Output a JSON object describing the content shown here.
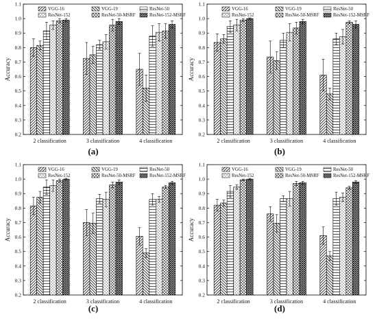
{
  "legend": [
    "VGG-16",
    "VGG-19",
    "ResNet-50",
    "ResNet-152",
    "ResNet-50-MSRF",
    "ResNet-152-MSRF"
  ],
  "chart_data": [
    {
      "type": "bar",
      "panel_label": "(a)",
      "categories": [
        "2 classification",
        "3 classification",
        "4 classification"
      ],
      "ylabel": "Accuracy",
      "ylim": [
        0.2,
        1.1
      ],
      "yticks": [
        "0.2",
        "0.3",
        "0.4",
        "0.5",
        "0.6",
        "0.7",
        "0.8",
        "0.9",
        "1.0",
        "1.1"
      ],
      "series": [
        {
          "name": "VGG-16",
          "values": [
            0.8,
            0.725,
            0.65
          ],
          "errors": [
            0.06,
            0.11,
            0.11
          ]
        },
        {
          "name": "VGG-19",
          "values": [
            0.815,
            0.75,
            0.52
          ],
          "errors": [
            0.03,
            0.06,
            0.09
          ]
        },
        {
          "name": "ResNet-50",
          "values": [
            0.915,
            0.82,
            0.88
          ],
          "errors": [
            0.06,
            0.03,
            0.07
          ]
        },
        {
          "name": "ResNet-152",
          "values": [
            0.955,
            0.84,
            0.905
          ],
          "errors": [
            0.03,
            0.05,
            0.06
          ]
        },
        {
          "name": "ResNet-50-MSRF",
          "values": [
            0.985,
            0.955,
            0.915
          ],
          "errors": [
            0.015,
            0.04,
            0.05
          ]
        },
        {
          "name": "ResNet-152-MSRF",
          "values": [
            0.99,
            0.98,
            0.96
          ],
          "errors": [
            0.01,
            0.02,
            0.025
          ]
        }
      ]
    },
    {
      "type": "bar",
      "panel_label": "(b)",
      "categories": [
        "2 classification",
        "3 classification",
        "4 classification"
      ],
      "ylabel": "Accuracy",
      "ylim": [
        0.2,
        1.1
      ],
      "yticks": [
        "0.2",
        "0.3",
        "0.4",
        "0.5",
        "0.6",
        "0.7",
        "0.8",
        "0.9",
        "1.0",
        "1.1"
      ],
      "series": [
        {
          "name": "VGG-16",
          "values": [
            0.835,
            0.735,
            0.61
          ],
          "errors": [
            0.06,
            0.11,
            0.11
          ]
        },
        {
          "name": "VGG-19",
          "values": [
            0.86,
            0.71,
            0.48
          ],
          "errors": [
            0.03,
            0.06,
            0.04
          ]
        },
        {
          "name": "ResNet-50",
          "values": [
            0.945,
            0.85,
            0.86
          ],
          "errors": [
            0.04,
            0.05,
            0.04
          ]
        },
        {
          "name": "ResNet-152",
          "values": [
            0.955,
            0.905,
            0.875
          ],
          "errors": [
            0.04,
            0.06,
            0.05
          ]
        },
        {
          "name": "ResNet-50-MSRF",
          "values": [
            0.99,
            0.935,
            0.975
          ],
          "errors": [
            0.01,
            0.04,
            0.01
          ]
        },
        {
          "name": "ResNet-152-MSRF",
          "values": [
            1.0,
            0.98,
            0.96
          ],
          "errors": [
            0.005,
            0.015,
            0.025
          ]
        }
      ]
    },
    {
      "type": "bar",
      "panel_label": "(c)",
      "categories": [
        "2 classification",
        "3 classification",
        "4 classification"
      ],
      "ylabel": "Accuracy",
      "ylim": [
        0.2,
        1.1
      ],
      "yticks": [
        "0.2",
        "0.3",
        "0.4",
        "0.5",
        "0.6",
        "0.7",
        "0.8",
        "0.9",
        "1.0",
        "1.1"
      ],
      "series": [
        {
          "name": "VGG-16",
          "values": [
            0.815,
            0.7,
            0.605
          ],
          "errors": [
            0.06,
            0.09,
            0.06
          ]
        },
        {
          "name": "VGG-19",
          "values": [
            0.875,
            0.695,
            0.49
          ],
          "errors": [
            0.04,
            0.07,
            0.03
          ]
        },
        {
          "name": "ResNet-50",
          "values": [
            0.945,
            0.865,
            0.86
          ],
          "errors": [
            0.05,
            0.03,
            0.04
          ]
        },
        {
          "name": "ResNet-152",
          "values": [
            0.955,
            0.86,
            0.86
          ],
          "errors": [
            0.04,
            0.05,
            0.02
          ]
        },
        {
          "name": "ResNet-50-MSRF",
          "values": [
            0.99,
            0.96,
            0.945
          ],
          "errors": [
            0.01,
            0.02,
            0.01
          ]
        },
        {
          "name": "ResNet-152-MSRF",
          "values": [
            1.0,
            0.98,
            0.975
          ],
          "errors": [
            0.005,
            0.015,
            0.01
          ]
        }
      ]
    },
    {
      "type": "bar",
      "panel_label": "(d)",
      "categories": [
        "2 classification",
        "3 classification",
        "4 classification"
      ],
      "ylabel": "Accuracy",
      "ylim": [
        0.2,
        1.1
      ],
      "yticks": [
        "0.2",
        "0.3",
        "0.4",
        "0.5",
        "0.6",
        "0.7",
        "0.8",
        "0.9",
        "1.0",
        "1.1"
      ],
      "series": [
        {
          "name": "VGG-16",
          "values": [
            0.82,
            0.76,
            0.61
          ],
          "errors": [
            0.04,
            0.05,
            0.06
          ]
        },
        {
          "name": "VGG-19",
          "values": [
            0.835,
            0.695,
            0.47
          ],
          "errors": [
            0.02,
            0.06,
            0.03
          ]
        },
        {
          "name": "ResNet-50",
          "values": [
            0.915,
            0.865,
            0.865
          ],
          "errors": [
            0.04,
            0.02,
            0.045
          ]
        },
        {
          "name": "ResNet-152",
          "values": [
            0.945,
            0.865,
            0.875
          ],
          "errors": [
            0.015,
            0.05,
            0.03
          ]
        },
        {
          "name": "ResNet-50-MSRF",
          "values": [
            0.995,
            0.97,
            0.94
          ],
          "errors": [
            0.005,
            0.015,
            0.01
          ]
        },
        {
          "name": "ResNet-152-MSRF",
          "values": [
            1.0,
            0.975,
            0.98
          ],
          "errors": [
            0.005,
            0.01,
            0.01
          ]
        }
      ]
    }
  ]
}
